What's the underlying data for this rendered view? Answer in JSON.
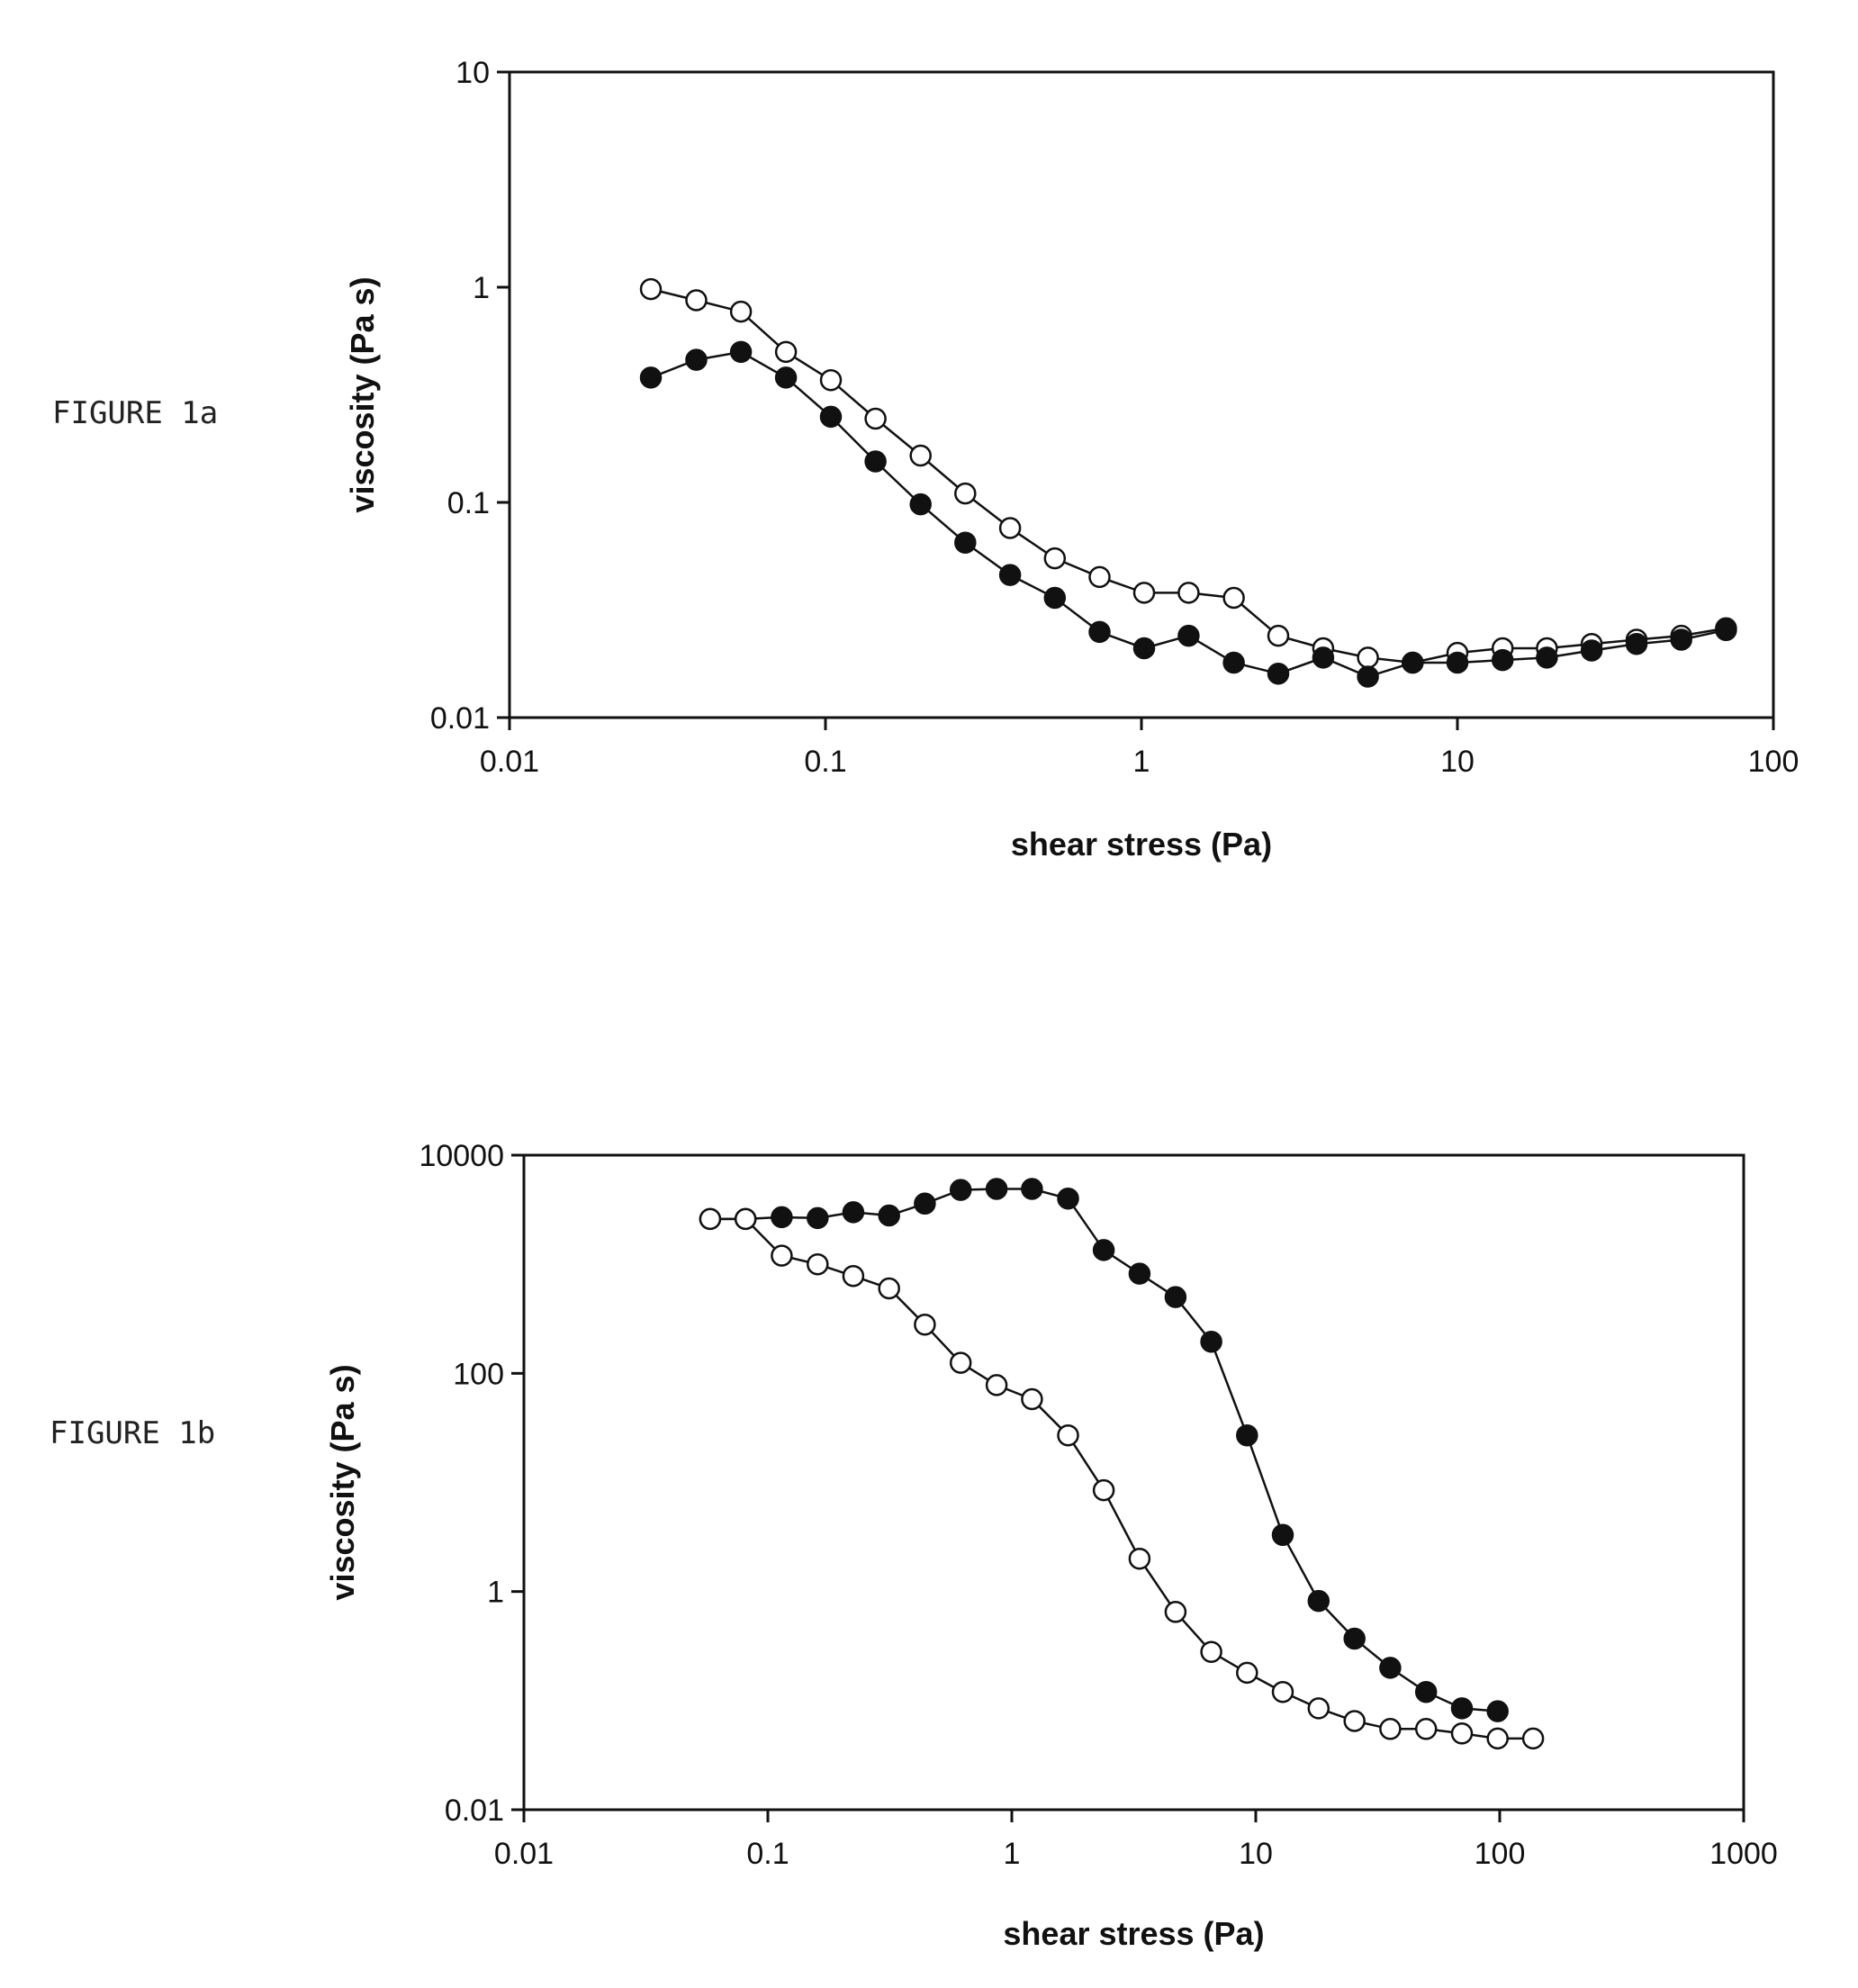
{
  "figures": [
    {
      "label": "FIGURE 1a"
    },
    {
      "label": "FIGURE 1b"
    }
  ],
  "chart_data": [
    {
      "type": "line",
      "title": "",
      "xlabel": "shear stress (Pa)",
      "ylabel": "viscosity (Pa s)",
      "xscale": "log",
      "yscale": "log",
      "xlim": [
        0.01,
        100
      ],
      "ylim": [
        0.01,
        10
      ],
      "x_tick_labels": [
        "0.01",
        "0.1",
        "1",
        "10",
        "100"
      ],
      "y_tick_labels": [
        "0.01",
        "0.1",
        "1",
        "10"
      ],
      "grid": false,
      "series": [
        {
          "marker": "open",
          "x": [
            0.028,
            0.039,
            0.054,
            0.075,
            0.104,
            0.144,
            0.2,
            0.277,
            0.384,
            0.532,
            0.737,
            1.02,
            1.41,
            1.96,
            2.71,
            3.76,
            5.21,
            7.22,
            10.0,
            13.9,
            19.2,
            26.6,
            36.9,
            51.1,
            70.8
          ],
          "y": [
            0.98,
            0.87,
            0.77,
            0.5,
            0.37,
            0.245,
            0.165,
            0.11,
            0.076,
            0.055,
            0.045,
            0.038,
            0.038,
            0.036,
            0.024,
            0.021,
            0.019,
            0.018,
            0.02,
            0.021,
            0.021,
            0.022,
            0.023,
            0.024,
            0.026
          ]
        },
        {
          "marker": "filled",
          "x": [
            0.028,
            0.039,
            0.054,
            0.075,
            0.104,
            0.144,
            0.2,
            0.277,
            0.384,
            0.532,
            0.737,
            1.02,
            1.41,
            1.96,
            2.71,
            3.76,
            5.21,
            7.22,
            10.0,
            13.9,
            19.2,
            26.6,
            36.9,
            51.1,
            70.8
          ],
          "y": [
            0.38,
            0.46,
            0.5,
            0.38,
            0.25,
            0.155,
            0.098,
            0.065,
            0.046,
            0.036,
            0.025,
            0.021,
            0.024,
            0.018,
            0.016,
            0.019,
            0.0155,
            0.018,
            0.018,
            0.0185,
            0.019,
            0.0205,
            0.022,
            0.023,
            0.0255
          ]
        }
      ]
    },
    {
      "type": "line",
      "title": "",
      "xlabel": "shear stress (Pa)",
      "ylabel": "viscosity (Pa s)",
      "xscale": "log",
      "yscale": "log",
      "xlim": [
        0.01,
        1000
      ],
      "ylim": [
        0.01,
        10000
      ],
      "x_tick_labels": [
        "0.01",
        "0.1",
        "1",
        "10",
        "100",
        "1000"
      ],
      "y_tick_labels": [
        "0.01",
        "1",
        "100",
        "10000"
      ],
      "grid": false,
      "series": [
        {
          "marker": "filled",
          "x": [
            0.058,
            0.081,
            0.114,
            0.16,
            0.224,
            0.314,
            0.44,
            0.617,
            0.866,
            1.21,
            1.7,
            2.38,
            3.34,
            4.69,
            6.57,
            9.21,
            12.9,
            18.1,
            25.4,
            35.6,
            49.9,
            70.0,
            98.1
          ],
          "y": [
            2600,
            2600,
            2700,
            2650,
            3000,
            2800,
            3600,
            4800,
            4900,
            4900,
            4000,
            1350,
            820,
            500,
            195,
            27,
            3.3,
            0.82,
            0.37,
            0.2,
            0.12,
            0.085,
            0.08
          ]
        },
        {
          "marker": "open",
          "x": [
            0.058,
            0.081,
            0.114,
            0.16,
            0.224,
            0.314,
            0.44,
            0.617,
            0.866,
            1.21,
            1.7,
            2.38,
            3.34,
            4.69,
            6.57,
            9.21,
            12.9,
            18.1,
            25.4,
            35.6,
            49.9,
            70.0,
            98.1,
            137.0
          ],
          "y": [
            2600,
            2600,
            1200,
            1000,
            780,
            600,
            280,
            125,
            78,
            58,
            27,
            8.5,
            2.0,
            0.65,
            0.28,
            0.18,
            0.12,
            0.085,
            0.065,
            0.055,
            0.055,
            0.05,
            0.045,
            0.045
          ]
        }
      ]
    }
  ]
}
